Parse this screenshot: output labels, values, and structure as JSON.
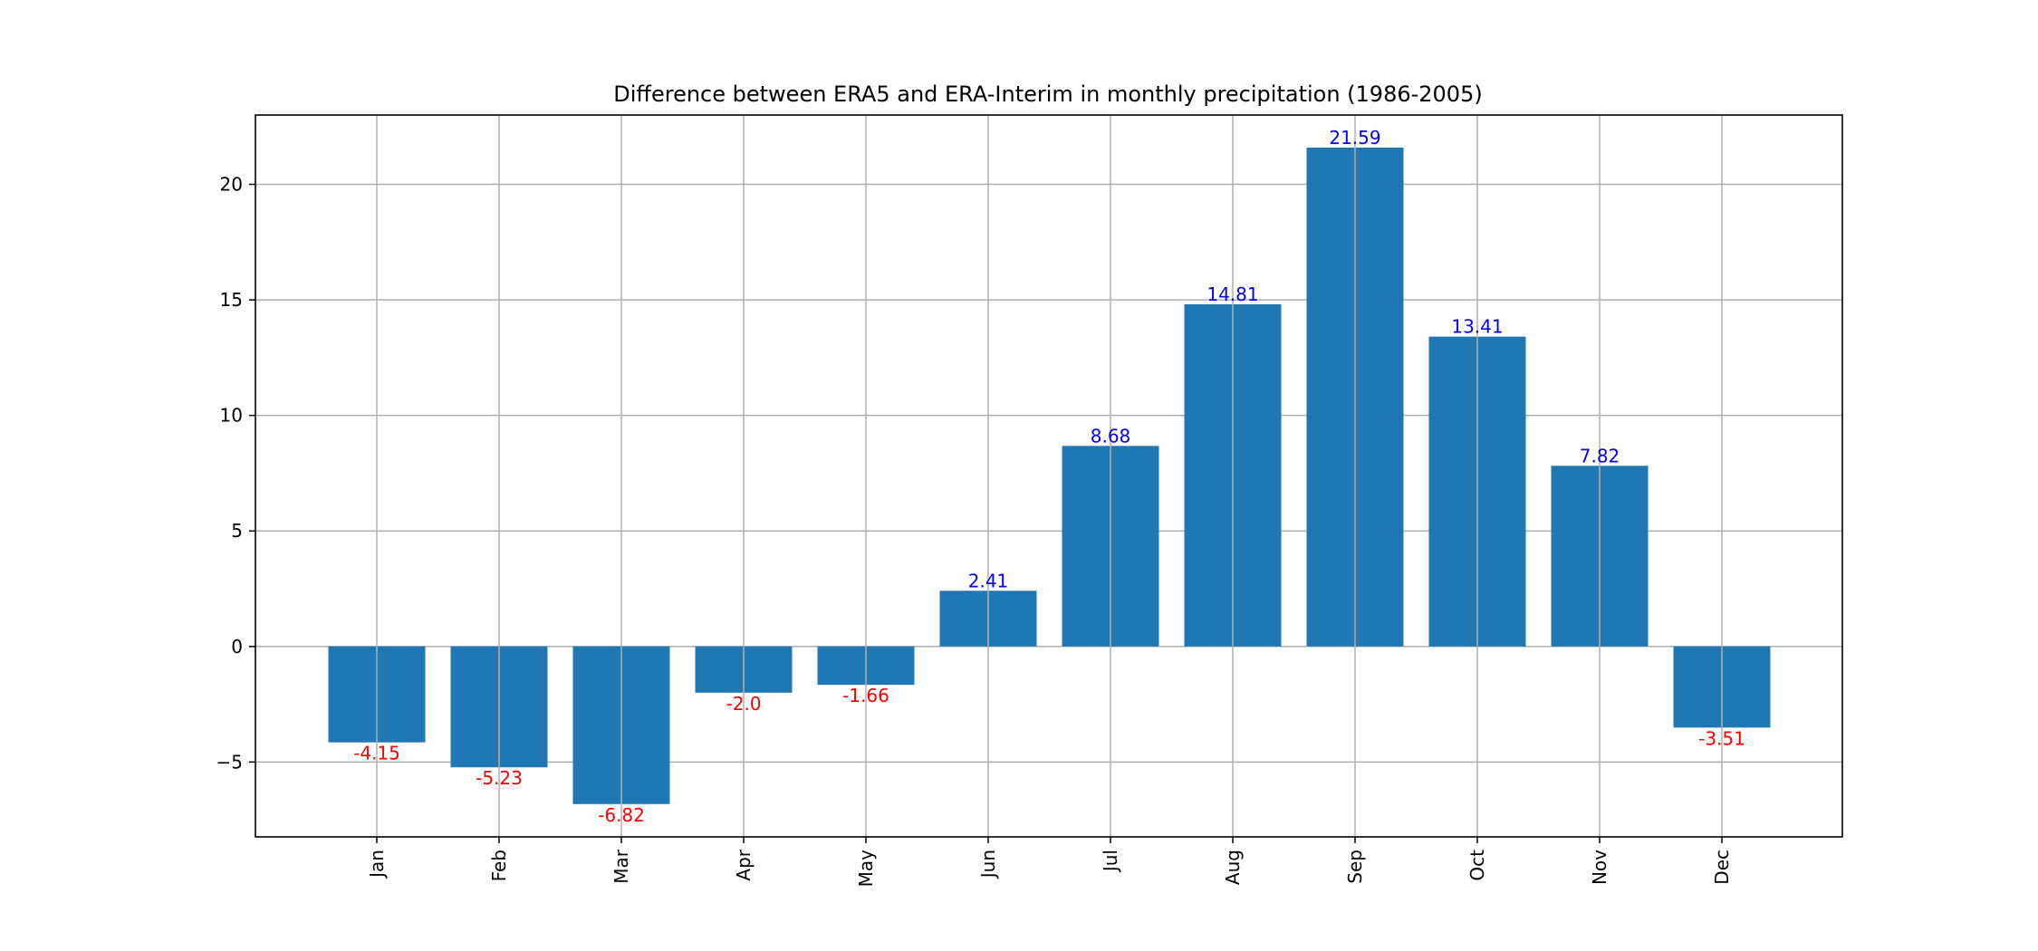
{
  "chart_data": {
    "type": "bar",
    "title": "Difference between ERA5 and ERA-Interim in monthly precipitation (1986-2005)",
    "xlabel": "",
    "ylabel": "",
    "categories": [
      "Jan",
      "Feb",
      "Mar",
      "Apr",
      "May",
      "Jun",
      "Jul",
      "Aug",
      "Sep",
      "Oct",
      "Nov",
      "Dec"
    ],
    "values": [
      -4.15,
      -5.23,
      -6.82,
      -2.0,
      -1.66,
      2.41,
      8.68,
      14.81,
      21.59,
      13.41,
      7.82,
      -3.51
    ],
    "value_labels": [
      "-4.15",
      "-5.23",
      "-6.82",
      "-2.0",
      "-1.66",
      "2.41",
      "8.68",
      "14.81",
      "21.59",
      "13.41",
      "7.82",
      "-3.51"
    ],
    "yticks": [
      -5,
      0,
      5,
      10,
      15,
      20
    ],
    "ytick_labels": [
      "−5",
      "0",
      "5",
      "10",
      "15",
      "20"
    ],
    "ylim": [
      -8.24,
      23.0
    ],
    "grid": true,
    "x_tick_rotation": "vertical",
    "legend": "none",
    "colors": {
      "bar": "#1f77b4",
      "positive_label": "#0000ff",
      "negative_label": "#ff0000",
      "grid": "#b0b0b0",
      "axes": "#000000"
    }
  }
}
